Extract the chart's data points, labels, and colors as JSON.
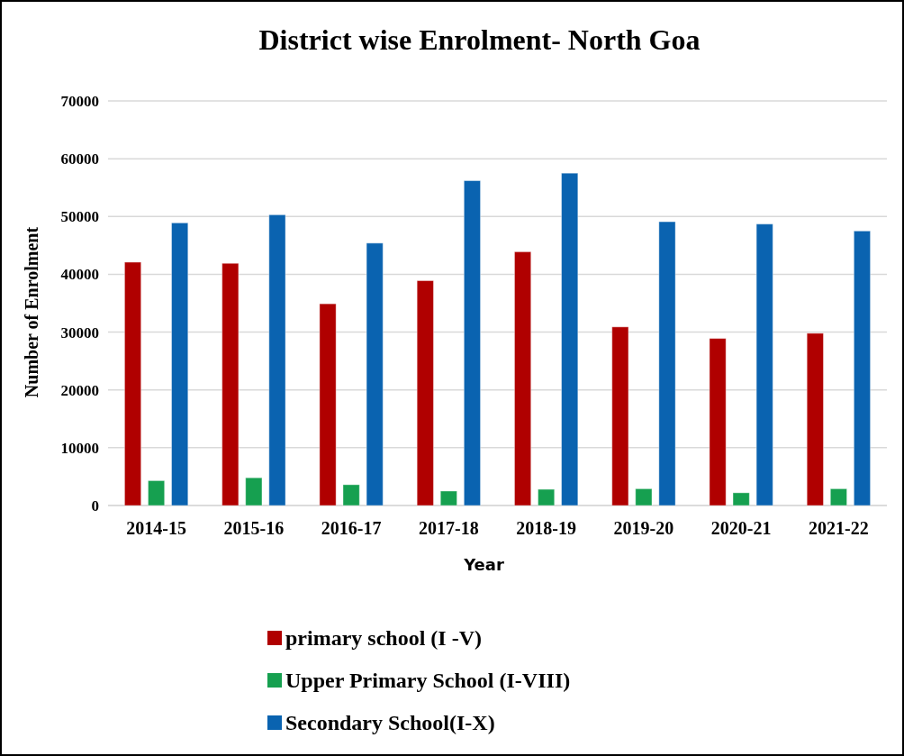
{
  "chart_data": {
    "type": "bar",
    "title": "District wise Enrolment- North Goa",
    "xlabel": "Year",
    "ylabel": "Number of Enrolment",
    "categories": [
      "2014-15",
      "2015-16",
      "2016-17",
      "2017-18",
      "2018-19",
      "2019-20",
      "2020-21",
      "2021-22"
    ],
    "series": [
      {
        "name": "primary school (I -V)",
        "color": "#b00000",
        "values": [
          42100,
          41900,
          34900,
          38900,
          43900,
          30900,
          28900,
          29800
        ]
      },
      {
        "name": "Upper Primary School (I-VIII)",
        "color": "#16a050",
        "values": [
          4300,
          4800,
          3600,
          2500,
          2800,
          2900,
          2200,
          2900
        ]
      },
      {
        "name": "Secondary School(I-X)",
        "color": "#0a63b0",
        "values": [
          48900,
          50300,
          45400,
          56200,
          57500,
          49100,
          48700,
          47500
        ]
      }
    ],
    "ylim": [
      0,
      70000
    ],
    "yticks": [
      0,
      10000,
      20000,
      30000,
      40000,
      50000,
      60000,
      70000
    ],
    "grid": "y",
    "legend": "bottom"
  }
}
